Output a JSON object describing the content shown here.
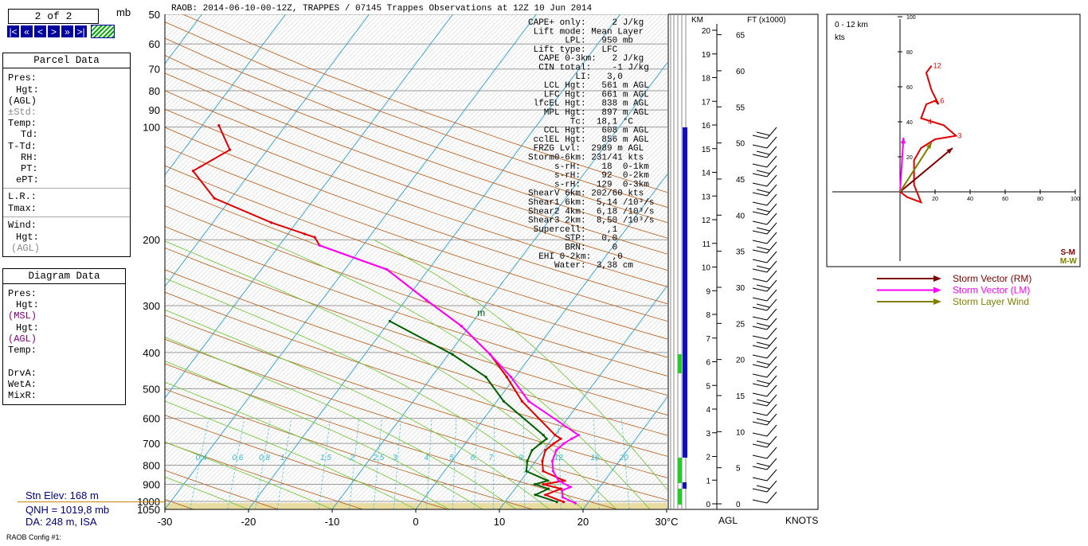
{
  "nav": {
    "page_indicator": "2 of 2",
    "pressure_unit": "mb",
    "buttons": [
      "|<",
      "«",
      "<",
      ">",
      "»",
      ">|"
    ]
  },
  "parcel_panel": {
    "title": "Parcel Data",
    "rows": [
      "Pres:",
      "Hgt:",
      "(AGL)",
      "±Std:",
      "Temp:",
      "Td:",
      "T-Td:",
      "RH:",
      "PT:",
      "ePT:",
      "L.R.:",
      "Tmax:",
      "Wind:",
      "Hgt:",
      "(AGL)"
    ]
  },
  "diagram_panel": {
    "title": "Diagram Data",
    "rows": [
      "Pres:",
      "Hgt:",
      "(MSL)",
      "Hgt:",
      "(AGL)",
      "Temp:",
      "DrvA:",
      "WetA:",
      "MixR:"
    ]
  },
  "station": {
    "elev": "Stn Elev: 168 m",
    "qnh": "QNH = 1019,8 mb",
    "da": "DA: 248 m, ISA"
  },
  "config_label": "RAOB Config #1:",
  "header_title": "RAOB:  2014-06-10-00-12Z, TRAPPES / 07145 Trappes Observations at 12Z 10 Jun 2014",
  "stats": [
    "CAPE+ only:     2 J/kg",
    " Lift mode: Mean Layer",
    "       LPL:   950 mb",
    " Lift type:   LFC",
    "  CAPE 0-3km:   2 J/kg",
    "  CIN total:    -1 J/kg",
    "         LI:   3,0",
    "   LCL Hgt:   561 m AGL",
    "   LFC Hgt:   661 m AGL",
    " lfcEL Hgt:   838 m AGL",
    "   MPL Hgt:   897 m AGL",
    "        Tc:  18,1 °C",
    "   CCL Hgt:   608 m AGL",
    " cclEL Hgt:   856 m AGL",
    " FRZG Lvl:  2989 m AGL",
    "Storm0-6km: 231/41 kts",
    "     s-rH:    18  0-1km",
    "     s-rH:    92  0-2km",
    "     s-rH:   129  0-3km",
    "ShearV 6km: 202/60 kts",
    "Shear1 6km:  5,14 /10³/s",
    "Shear2 4km:  6,18 /10³/s",
    "Shear3 2km:  8,50 /10³/s",
    " Supercell:    ,1",
    "       STP:   0,0",
    "       BRN:     0",
    "  EHI 0-2km:    ,0",
    "     Water:  3,38 cm"
  ],
  "hodograph": {
    "range_label": "0 - 12 km",
    "unit": "kts",
    "y_ticks": [
      "100",
      "80",
      "60",
      "40",
      "20"
    ],
    "x_ticks": [
      "20",
      "40",
      "60",
      "80",
      "100"
    ],
    "height_labels": [
      "12",
      "6",
      "4",
      "3"
    ],
    "sm_label": "S-M",
    "mw_label": "M-W",
    "legend": [
      {
        "label": "Storm Vector (RM)",
        "color": "#800000"
      },
      {
        "label": "Storm Vector (LM)",
        "color": "#ff00ff"
      },
      {
        "label": "Storm Layer Wind",
        "color": "#808000"
      }
    ],
    "trace_uv": [
      [
        0,
        0
      ],
      [
        4,
        -3
      ],
      [
        12,
        -6
      ],
      [
        8,
        4
      ],
      [
        8,
        18
      ],
      [
        12,
        25
      ],
      [
        20,
        30
      ],
      [
        32,
        32
      ],
      [
        25,
        38
      ],
      [
        12,
        42
      ],
      [
        15,
        50
      ],
      [
        20,
        52
      ],
      [
        22,
        50
      ],
      [
        18,
        58
      ],
      [
        15,
        68
      ],
      [
        18,
        72
      ]
    ],
    "rm_vector": [
      30,
      25
    ],
    "lm_vector": [
      2,
      31
    ],
    "mean_wind": [
      18,
      28
    ]
  },
  "axes": {
    "pressure_labels": [
      "50",
      "60",
      "70",
      "80",
      "90",
      "100",
      "200",
      "300",
      "400",
      "500",
      "600",
      "700",
      "800",
      "900",
      "1000",
      "1050"
    ],
    "temp_labels": [
      "-30",
      "-20",
      "-10",
      "0",
      "10",
      "20",
      "30°C"
    ],
    "km_title": "KM",
    "ft_title": "FT (x1000)",
    "km_labels": [
      "0",
      "1",
      "2",
      "3",
      "4",
      "5",
      "6",
      "7",
      "8",
      "9",
      "10",
      "11",
      "12",
      "13",
      "14",
      "15",
      "16",
      "17",
      "18",
      "19",
      "20"
    ],
    "ft_labels": [
      "0",
      "5",
      "10",
      "15",
      "20",
      "25",
      "30",
      "35",
      "40",
      "45",
      "50",
      "55",
      "60",
      "65"
    ],
    "agl_label": "AGL",
    "knots_label": "KNOTS",
    "mixing_ratio_labels": [
      "0,2",
      "0,4",
      "0,6",
      "0,8",
      "1",
      "1,5",
      "2",
      "2,5",
      "3",
      "4",
      "5",
      "6",
      "7",
      "9",
      "12",
      "16",
      "20"
    ],
    "m_marker": "m"
  },
  "chart_data": {
    "type": "line",
    "title": "RAOB:  2014-06-10-00-12Z, TRAPPES / 07145 Trappes Observations at 12Z 10 Jun 2014",
    "xlabel": "°C",
    "ylabel": "mb",
    "xlim": [
      -30,
      30
    ],
    "ylim": [
      1050,
      50
    ],
    "y_scale": "log",
    "skew": true,
    "series": [
      {
        "color": "#e00000",
        "points": [
          [
            17.0,
            1003
          ],
          [
            14.2,
            960
          ],
          [
            15.5,
            925
          ],
          [
            13.0,
            900
          ],
          [
            15.2,
            880
          ],
          [
            11.8,
            830
          ],
          [
            10.8,
            780
          ],
          [
            10.2,
            730
          ],
          [
            10.6,
            700
          ],
          [
            11.0,
            680
          ],
          [
            10.0,
            665
          ],
          [
            3.0,
            540
          ],
          [
            -1.0,
            465
          ],
          [
            -5.0,
            405
          ],
          [
            -11.0,
            340
          ],
          [
            -17.5,
            290
          ],
          [
            -25.0,
            240
          ],
          [
            -35.2,
            207
          ],
          [
            -36.5,
            197
          ],
          [
            -38.0,
            193
          ],
          [
            -43.0,
            180
          ],
          [
            -52.0,
            155
          ],
          [
            -57.0,
            131
          ],
          [
            -54.5,
            115
          ],
          [
            -58.0,
            99
          ]
        ]
      },
      {
        "color": "#006000",
        "points": [
          [
            16.2,
            1003
          ],
          [
            13.0,
            960
          ],
          [
            14.0,
            925
          ],
          [
            12.0,
            900
          ],
          [
            13.2,
            880
          ],
          [
            9.8,
            830
          ],
          [
            9.0,
            780
          ],
          [
            8.6,
            730
          ],
          [
            9.0,
            700
          ],
          [
            9.3,
            680
          ],
          [
            8.6,
            665
          ],
          [
            0.8,
            540
          ],
          [
            -3.5,
            465
          ],
          [
            -9.5,
            405
          ],
          [
            -20.0,
            330
          ]
        ]
      },
      {
        "color": "#ff00ff",
        "points": [
          [
            18.5,
            1010
          ],
          [
            16.5,
            975
          ],
          [
            15.8,
            935
          ],
          [
            16.5,
            915
          ],
          [
            14.5,
            880
          ],
          [
            13.0,
            830
          ],
          [
            12.0,
            780
          ],
          [
            11.5,
            730
          ],
          [
            11.8,
            700
          ],
          [
            12.3,
            680
          ],
          [
            12.8,
            665
          ],
          [
            3.8,
            540
          ],
          [
            -0.5,
            465
          ],
          [
            -5.0,
            405
          ],
          [
            -11.0,
            340
          ],
          [
            -17.5,
            290
          ],
          [
            -25.0,
            240
          ],
          [
            -35.2,
            207
          ]
        ]
      }
    ]
  }
}
